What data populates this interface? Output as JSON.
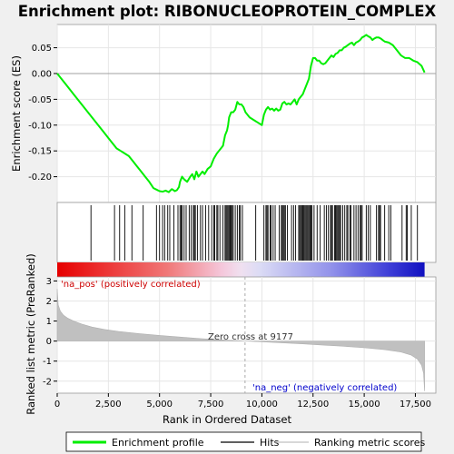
{
  "chart_data": {
    "type": "line",
    "title": "Enrichment plot: RIBONUCLEOPROTEIN_COMPLEX",
    "panels": {
      "es": {
        "ylabel": "Enrichment score (ES)",
        "ylim": [
          -0.25,
          0.095
        ],
        "yticks": [
          0.05,
          0.0,
          -0.05,
          -0.1,
          -0.15,
          -0.2
        ],
        "ytick_labels": [
          "0.05",
          "0.00",
          "-0.05",
          "-0.10",
          "-0.15",
          "-0.20"
        ],
        "series": [
          {
            "name": "Enrichment profile",
            "color": "#00ee00",
            "x": [
              0,
              200,
              500,
              800,
              1100,
              1400,
              1700,
              2000,
              2300,
              2600,
              2900,
              3100,
              3300,
              3500,
              3700,
              3900,
              4100,
              4300,
              4500,
              4700,
              4850,
              5000,
              5150,
              5300,
              5450,
              5600,
              5750,
              5850,
              5950,
              6000,
              6100,
              6200,
              6350,
              6500,
              6600,
              6700,
              6800,
              6900,
              7000,
              7100,
              7200,
              7350,
              7500,
              7650,
              7800,
              7900,
              8000,
              8100,
              8200,
              8300,
              8350,
              8400,
              8500,
              8600,
              8700,
              8800,
              8900,
              9000,
              9100,
              9200,
              9400,
              9600,
              9800,
              10000,
              10100,
              10200,
              10300,
              10400,
              10500,
              10600,
              10700,
              10800,
              10900,
              11000,
              11100,
              11200,
              11300,
              11400,
              11500,
              11600,
              11700,
              11800,
              11900,
              12000,
              12100,
              12200,
              12300,
              12400,
              12500,
              12600,
              12700,
              12800,
              12900,
              13000,
              13100,
              13200,
              13300,
              13400,
              13500,
              13600,
              13700,
              13800,
              13900,
              14000,
              14100,
              14200,
              14300,
              14400,
              14500,
              14600,
              14700,
              14800,
              14900,
              15000,
              15100,
              15200,
              15300,
              15400,
              15500,
              15600,
              15700,
              15800,
              15900,
              16000,
              16200,
              16400,
              16600,
              16800,
              17000,
              17200,
              17400,
              17600,
              17800,
              17950
            ],
            "y": [
              0.0,
              -0.01,
              -0.025,
              -0.04,
              -0.055,
              -0.07,
              -0.085,
              -0.1,
              -0.115,
              -0.13,
              -0.145,
              -0.15,
              -0.155,
              -0.16,
              -0.17,
              -0.18,
              -0.19,
              -0.2,
              -0.21,
              -0.222,
              -0.225,
              -0.228,
              -0.229,
              -0.227,
              -0.23,
              -0.224,
              -0.228,
              -0.226,
              -0.22,
              -0.21,
              -0.2,
              -0.205,
              -0.21,
              -0.2,
              -0.195,
              -0.205,
              -0.19,
              -0.2,
              -0.195,
              -0.19,
              -0.195,
              -0.185,
              -0.18,
              -0.165,
              -0.155,
              -0.15,
              -0.145,
              -0.14,
              -0.12,
              -0.11,
              -0.1,
              -0.085,
              -0.075,
              -0.075,
              -0.07,
              -0.055,
              -0.06,
              -0.06,
              -0.065,
              -0.075,
              -0.085,
              -0.09,
              -0.095,
              -0.1,
              -0.08,
              -0.07,
              -0.065,
              -0.07,
              -0.068,
              -0.072,
              -0.068,
              -0.072,
              -0.07,
              -0.058,
              -0.055,
              -0.06,
              -0.058,
              -0.06,
              -0.055,
              -0.05,
              -0.06,
              -0.05,
              -0.045,
              -0.04,
              -0.03,
              -0.02,
              -0.01,
              0.015,
              0.03,
              0.03,
              0.025,
              0.025,
              0.02,
              0.018,
              0.02,
              0.025,
              0.03,
              0.035,
              0.032,
              0.038,
              0.04,
              0.045,
              0.045,
              0.05,
              0.052,
              0.055,
              0.058,
              0.06,
              0.055,
              0.06,
              0.062,
              0.065,
              0.07,
              0.072,
              0.075,
              0.072,
              0.07,
              0.065,
              0.068,
              0.07,
              0.07,
              0.068,
              0.065,
              0.062,
              0.06,
              0.055,
              0.045,
              0.035,
              0.03,
              0.03,
              0.025,
              0.022,
              0.015,
              0.002
            ]
          }
        ]
      },
      "metric": {
        "ylabel": "Ranked list metric (PreRanked)",
        "ylim": [
          -2.6,
          3.2
        ],
        "yticks": [
          3,
          2,
          1,
          0,
          -1,
          -2
        ],
        "ytick_labels": [
          "3",
          "2",
          "1",
          "0",
          "-1",
          "-2"
        ],
        "series": [
          {
            "name": "Ranking metric scores",
            "color": "#c0c0c0",
            "x": [
              0,
              50,
              150,
              300,
              500,
              800,
              1200,
              1700,
              2300,
              3000,
              4000,
              5000,
              6000,
              7000,
              8000,
              9177,
              10000,
              11000,
              12000,
              13000,
              14000,
              15000,
              16000,
              16800,
              17300,
              17600,
              17800,
              17900,
              17950
            ],
            "y": [
              2.6,
              1.8,
              1.5,
              1.3,
              1.15,
              1.0,
              0.85,
              0.7,
              0.58,
              0.48,
              0.37,
              0.28,
              0.2,
              0.12,
              0.06,
              0.0,
              -0.04,
              -0.09,
              -0.14,
              -0.2,
              -0.26,
              -0.33,
              -0.43,
              -0.55,
              -0.7,
              -0.9,
              -1.2,
              -1.6,
              -2.5
            ]
          }
        ],
        "annotations": [
          {
            "text": "'na_pos' (positively correlated)",
            "color": "#cc0000"
          },
          {
            "text": "Zero cross at 9177",
            "color": "#333333"
          },
          {
            "text": "'na_neg' (negatively correlated)",
            "color": "#0000cc"
          }
        ],
        "zero_cross": 9177
      }
    },
    "xlabel": "Rank in Ordered Dataset",
    "xlim": [
      0,
      18500
    ],
    "xticks": [
      0,
      2500,
      5000,
      7500,
      10000,
      12500,
      15000,
      17500
    ],
    "xtick_labels": [
      "0",
      "2,500",
      "5,000",
      "7,500",
      "10,000",
      "12,500",
      "15,000",
      "17,500"
    ],
    "hits": [
      1650,
      2800,
      3050,
      3300,
      3650,
      4200,
      4850,
      5000,
      5150,
      5250,
      5400,
      5500,
      5700,
      5900,
      6000,
      6050,
      6100,
      6200,
      6300,
      6450,
      6550,
      6650,
      6700,
      6750,
      6850,
      7000,
      7100,
      7250,
      7400,
      7550,
      7650,
      7700,
      7800,
      7850,
      7950,
      8100,
      8200,
      8250,
      8300,
      8350,
      8400,
      8450,
      8500,
      8550,
      8600,
      8700,
      8800,
      8900,
      8950,
      9050,
      9700,
      10100,
      10200,
      10250,
      10300,
      10400,
      10450,
      10550,
      10650,
      10850,
      10950,
      11000,
      11050,
      11100,
      11150,
      11250,
      11450,
      11550,
      11650,
      11800,
      11850,
      11900,
      11950,
      12000,
      12050,
      12100,
      12150,
      12200,
      12250,
      12300,
      12350,
      12400,
      12450,
      12550,
      12700,
      12850,
      13050,
      13150,
      13250,
      13350,
      13400,
      13450,
      13550,
      13600,
      13650,
      13700,
      13750,
      13800,
      13850,
      13950,
      14050,
      14150,
      14200,
      14300,
      14350,
      14500,
      14600,
      14700,
      14800,
      14850,
      14900,
      15100,
      15200,
      15300,
      15600,
      15700,
      15750,
      15800,
      16000,
      16200,
      16300,
      16850,
      17050,
      17100,
      17300,
      17600
    ],
    "legend": {
      "placement": "bottom",
      "entries": [
        {
          "label": "Enrichment profile",
          "color": "#00ee00",
          "kind": "thick-line"
        },
        {
          "label": "Hits",
          "color": "#000000",
          "kind": "thin-line"
        },
        {
          "label": "Ranking metric scores",
          "color": "#c0c0c0",
          "kind": "thin-line"
        }
      ]
    },
    "grid": true
  }
}
